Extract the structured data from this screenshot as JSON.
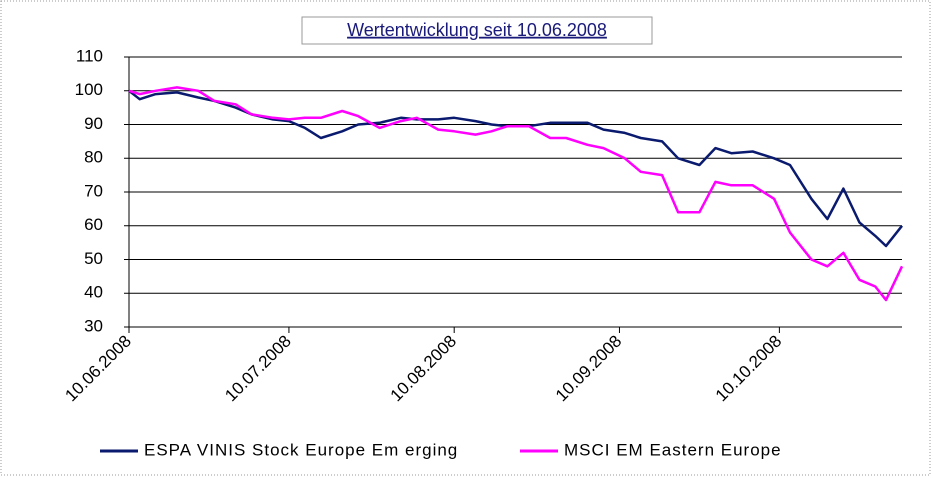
{
  "chart_data": {
    "type": "line",
    "title": "Wertentwicklung seit 10.06.2008",
    "x": [
      "10.06.2008",
      "12.06.2008",
      "15.06.2008",
      "19.06.2008",
      "23.06.2008",
      "26.06.2008",
      "30.06.2008",
      "03.07.2008",
      "07.07.2008",
      "10.07.2008",
      "13.07.2008",
      "16.07.2008",
      "20.07.2008",
      "23.07.2008",
      "27.07.2008",
      "31.07.2008",
      "03.08.2008",
      "07.08.2008",
      "10.08.2008",
      "14.08.2008",
      "17.08.2008",
      "20.08.2008",
      "24.08.2008",
      "28.08.2008",
      "31.08.2008",
      "04.09.2008",
      "07.09.2008",
      "11.09.2008",
      "14.09.2008",
      "18.09.2008",
      "21.09.2008",
      "25.09.2008",
      "28.09.2008",
      "01.10.2008",
      "05.10.2008",
      "09.10.2008",
      "12.10.2008",
      "16.10.2008",
      "19.10.2008",
      "22.10.2008",
      "25.10.2008",
      "28.10.2008",
      "30.10.2008",
      "02.11.2008"
    ],
    "series": [
      {
        "name": "ESPA VINIS Stock Europe Em erging",
        "color": "#0a1a6e",
        "values": [
          100,
          97.5,
          99,
          99.5,
          98,
          97,
          95,
          93,
          91.5,
          91,
          89,
          86,
          88,
          90,
          90.5,
          92,
          91.5,
          91.5,
          92,
          91,
          90,
          89.5,
          89.5,
          90.5,
          90.5,
          90.5,
          88.5,
          87.5,
          86,
          85,
          80,
          78,
          83,
          81.5,
          82,
          80,
          78,
          68,
          62,
          71,
          61,
          57,
          54,
          60
        ]
      },
      {
        "name": "MSCI EM Eastern Europe",
        "color": "#ff00ff",
        "values": [
          100,
          99,
          100,
          101,
          100,
          97,
          96,
          93,
          92,
          91.5,
          92,
          92,
          94,
          92.5,
          89,
          91,
          92,
          88.5,
          88,
          87,
          88,
          89.5,
          89.5,
          86,
          86,
          84,
          83,
          80,
          76,
          75,
          64,
          64,
          73,
          72,
          72,
          68,
          58,
          50,
          48,
          52,
          44,
          42,
          38,
          48
        ]
      }
    ],
    "xlim": [
      "10.06.2008",
      "02.11.2008"
    ],
    "xticks": [
      "10.06.2008",
      "10.07.2008",
      "10.08.2008",
      "10.09.2008",
      "10.10.2008"
    ],
    "ylim": [
      30,
      110
    ],
    "yticks": [
      30,
      40,
      50,
      60,
      70,
      80,
      90,
      100,
      110
    ],
    "grid": true,
    "legend": "bottom"
  }
}
